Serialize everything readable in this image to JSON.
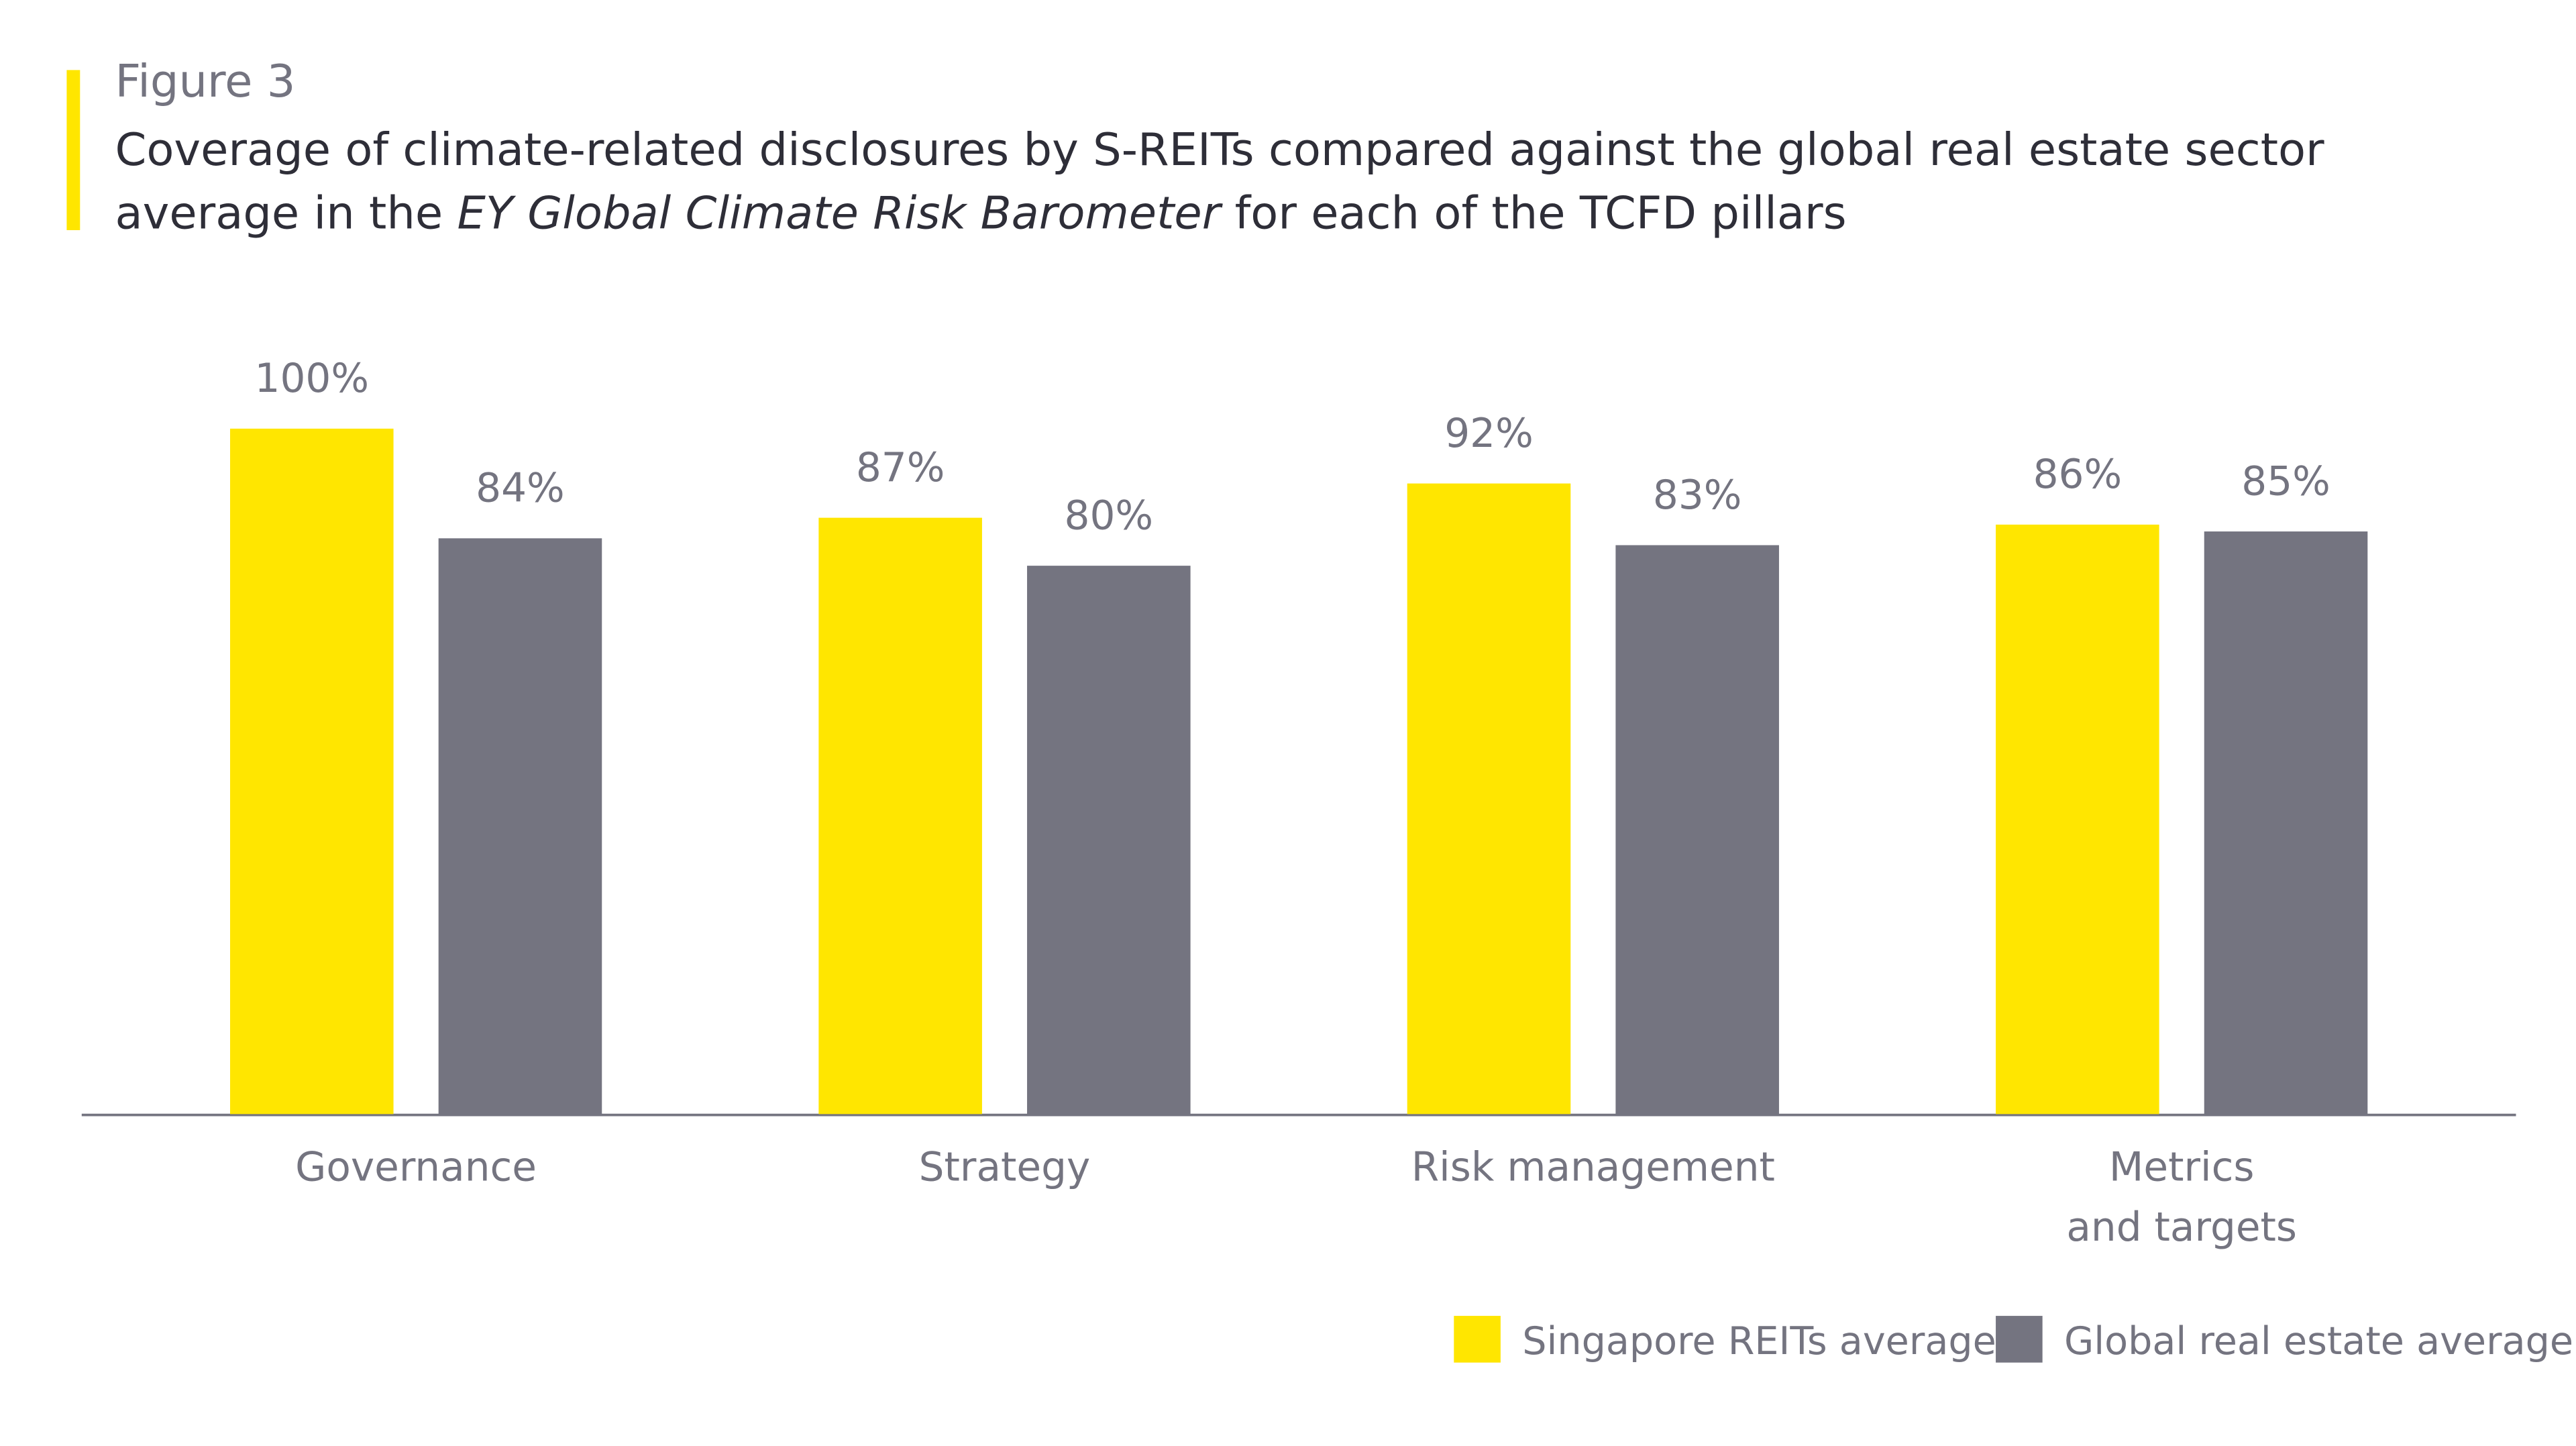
{
  "chart_data": {
    "type": "bar",
    "figure_label": "Figure 3",
    "title": [
      "Coverage of climate-related disclosures by S-REITs compared against the global real estate sector average in the ",
      "EY Global Climate Risk Barometer",
      " for each of the TCFD pillars"
    ],
    "categories": [
      "Governance",
      "Strategy",
      "Risk management",
      "Metrics\nand targets"
    ],
    "ylim": [
      0,
      100
    ],
    "series": [
      {
        "name": "Singapore REITs average",
        "color": "#FFE600",
        "values": [
          100,
          87,
          92,
          86
        ],
        "value_labels": [
          "100%",
          "87%",
          "92%",
          "86%"
        ]
      },
      {
        "name": "Global real estate average",
        "color": "#747480",
        "values": [
          84,
          80,
          83,
          85
        ],
        "value_labels": [
          "84%",
          "80%",
          "83%",
          "85%"
        ]
      }
    ]
  }
}
